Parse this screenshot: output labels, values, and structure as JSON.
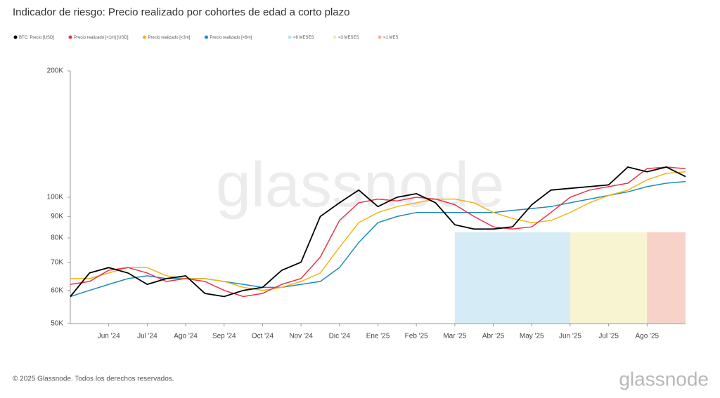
{
  "chart_data": {
    "type": "line",
    "title": "Indicador de riesgo: Precio realizado por cohortes de edad a corto plazo",
    "watermark": "glassnode",
    "footer": "© 2025 Glassnode. Todos los derechos reservados.",
    "logo": "glassnode",
    "log_scale": true,
    "categories": [
      null,
      null,
      "Jun '24",
      null,
      "Jul '24",
      null,
      "Ago '24",
      null,
      "Sep '24",
      null,
      "Oct '24",
      null,
      "Nov '24",
      null,
      "Dic '24",
      null,
      "Ene '25",
      null,
      "Feb '25",
      null,
      "Mar '25",
      null,
      "Abr '25",
      null,
      "May '25",
      null,
      "Jun '25",
      null,
      "Jul '25",
      null,
      "Ago '25",
      null,
      null
    ],
    "ylim": [
      50000,
      200000
    ],
    "yticks": [
      {
        "value": 50000,
        "label": "50K"
      },
      {
        "value": 60000,
        "label": "60K"
      },
      {
        "value": 70000,
        "label": "70K"
      },
      {
        "value": 80000,
        "label": "80K"
      },
      {
        "value": 90000,
        "label": "90K"
      },
      {
        "value": 100000,
        "label": "100K"
      },
      {
        "value": 200000,
        "label": "200K"
      }
    ],
    "series": [
      {
        "name": "BTC: Precio [USD]",
        "color": "#000000",
        "values": [
          58000,
          66000,
          68000,
          66000,
          62000,
          64000,
          65000,
          59000,
          58000,
          60000,
          61000,
          67000,
          70000,
          90000,
          97000,
          104000,
          95000,
          100000,
          102000,
          97000,
          86000,
          84000,
          84000,
          85000,
          96000,
          104000,
          105000,
          106000,
          107000,
          118000,
          115000,
          118000,
          112000
        ]
      },
      {
        "name": "Precio realizado [<1m] [USD]",
        "color": "#e8334a",
        "values": [
          62000,
          63000,
          67000,
          68000,
          66000,
          63000,
          64000,
          63000,
          60000,
          58000,
          59000,
          62000,
          64000,
          72000,
          88000,
          97000,
          99000,
          98000,
          100000,
          99000,
          96000,
          90000,
          85000,
          84000,
          85000,
          92000,
          100000,
          104000,
          106000,
          108000,
          117000,
          118000,
          117000
        ]
      },
      {
        "name": "Precio realizado [<3m]",
        "color": "#f2b51c",
        "values": [
          64000,
          64000,
          66000,
          68000,
          68000,
          65000,
          64000,
          64000,
          63000,
          61000,
          60000,
          61000,
          63000,
          66000,
          76000,
          87000,
          92000,
          95000,
          97000,
          99000,
          99000,
          97000,
          92000,
          89000,
          87000,
          88000,
          92000,
          97000,
          101000,
          104000,
          110000,
          114000,
          115000
        ]
      },
      {
        "name": "Precio realizado [<6m]",
        "color": "#1f8bb8",
        "values": [
          58000,
          60000,
          62000,
          64000,
          65000,
          64000,
          64000,
          64000,
          63000,
          62000,
          61000,
          61000,
          62000,
          63000,
          68000,
          78000,
          87000,
          90000,
          92000,
          92000,
          92000,
          92000,
          92000,
          93000,
          94000,
          95000,
          97000,
          99000,
          101000,
          103000,
          106000,
          108000,
          109000
        ]
      }
    ],
    "bands": [
      {
        "name": "<6 MESES",
        "color": "#b9e0f2",
        "start": "Mar '25"
      },
      {
        "name": "<3 MESES",
        "color": "#f4ecb4",
        "start": "Jun '25"
      },
      {
        "name": "<1 MES",
        "color": "#f0b4a4",
        "start": "Ago '25"
      }
    ]
  }
}
